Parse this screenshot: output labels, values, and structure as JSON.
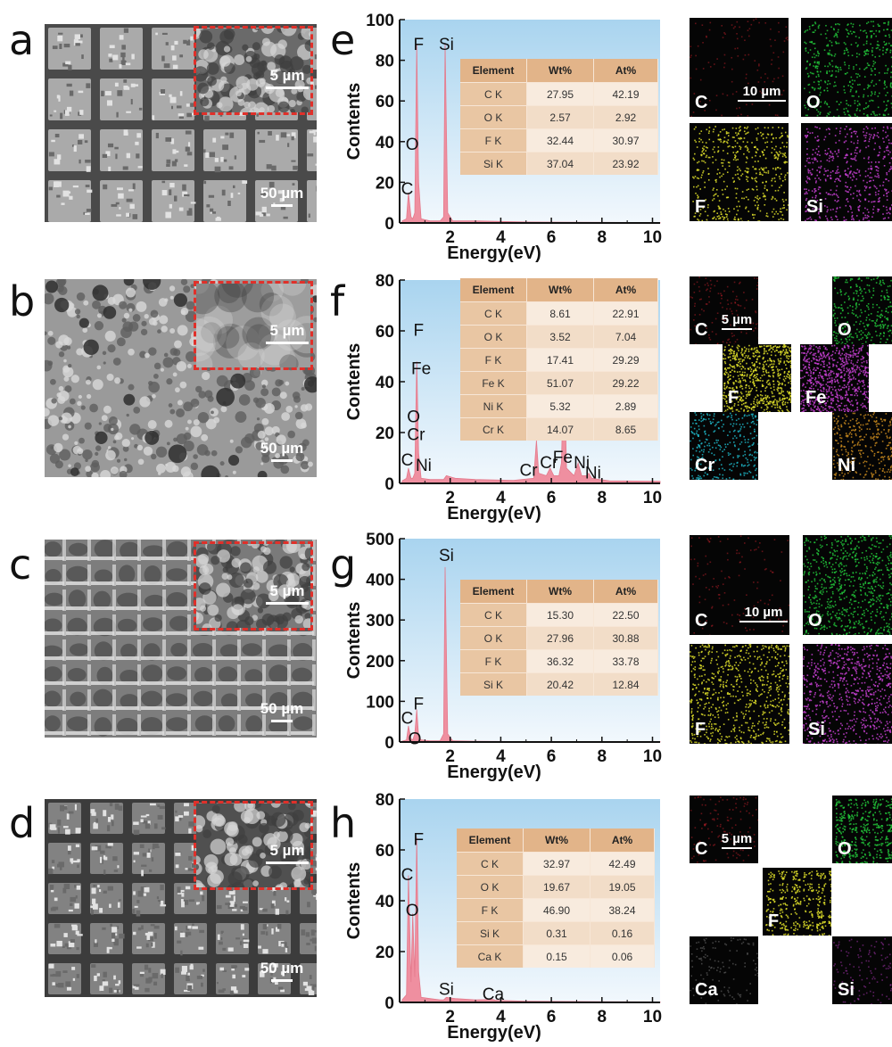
{
  "panels": [
    {
      "letter": "a",
      "inset_scale": "5 µm",
      "main_scale": "50 µm",
      "style": "grid"
    },
    {
      "letter": "b",
      "inset_scale": "5 µm",
      "main_scale": "50 µm",
      "style": "porous"
    },
    {
      "letter": "c",
      "inset_scale": "5 µm",
      "main_scale": "50 µm",
      "style": "ridged"
    },
    {
      "letter": "d",
      "inset_scale": "5 µm",
      "main_scale": "50 µm",
      "style": "grid-dark"
    }
  ],
  "charts": [
    {
      "letter": "e",
      "table_header": [
        "Element",
        "Wt%",
        "At%"
      ],
      "table_rows": [
        [
          "C K",
          "27.95",
          "42.19"
        ],
        [
          "O K",
          "2.57",
          "2.92"
        ],
        [
          "F K",
          "32.44",
          "30.97"
        ],
        [
          "Si K",
          "37.04",
          "23.92"
        ]
      ]
    },
    {
      "letter": "f",
      "table_header": [
        "Element",
        "Wt%",
        "At%"
      ],
      "table_rows": [
        [
          "C K",
          "8.61",
          "22.91"
        ],
        [
          "O K",
          "3.52",
          "7.04"
        ],
        [
          "F K",
          "17.41",
          "29.29"
        ],
        [
          "Fe K",
          "51.07",
          "29.22"
        ],
        [
          "Ni K",
          "5.32",
          "2.89"
        ],
        [
          "Cr K",
          "14.07",
          "8.65"
        ]
      ]
    },
    {
      "letter": "g",
      "table_header": [
        "Element",
        "Wt%",
        "At%"
      ],
      "table_rows": [
        [
          "C K",
          "15.30",
          "22.50"
        ],
        [
          "O K",
          "27.96",
          "30.88"
        ],
        [
          "F K",
          "36.32",
          "33.78"
        ],
        [
          "Si K",
          "20.42",
          "12.84"
        ]
      ]
    },
    {
      "letter": "h",
      "table_header": [
        "Element",
        "Wt%",
        "At%"
      ],
      "table_rows": [
        [
          "C K",
          "32.97",
          "42.49"
        ],
        [
          "O K",
          "19.67",
          "19.05"
        ],
        [
          "F K",
          "46.90",
          "38.24"
        ],
        [
          "Si K",
          "0.31",
          "0.16"
        ],
        [
          "Ca K",
          "0.15",
          "0.06"
        ]
      ]
    }
  ],
  "chart_data": [
    {
      "type": "line",
      "xlabel": "Energy(eV)",
      "ylabel": "Contents",
      "xlim": [
        0,
        10.3
      ],
      "ylim": [
        0,
        100
      ],
      "xticks": [
        2,
        4,
        6,
        8,
        10
      ],
      "yticks": [
        0,
        20,
        40,
        60,
        80,
        100
      ],
      "series": [
        {
          "x": [
            0.1,
            0.27,
            0.35,
            0.45,
            0.52,
            0.6,
            0.677,
            0.75,
            0.85,
            1.2,
            1.6,
            1.74,
            1.8,
            1.9,
            2.1,
            3,
            5,
            8,
            10.3
          ],
          "values": [
            1,
            2,
            15,
            3,
            2,
            5,
            88,
            20,
            2,
            1,
            1,
            3,
            88,
            5,
            1,
            1,
            0.5,
            0.3,
            0.2
          ]
        }
      ],
      "peak_labels": [
        {
          "text": "C",
          "x": 0.3,
          "y": 14
        },
        {
          "text": "O",
          "x": 0.5,
          "y": 36
        },
        {
          "text": "F",
          "x": 0.75,
          "y": 85
        },
        {
          "text": "Si",
          "x": 1.85,
          "y": 85
        }
      ]
    },
    {
      "type": "line",
      "xlabel": "Energy(eV)",
      "ylabel": "Contents",
      "xlim": [
        0,
        10.3
      ],
      "ylim": [
        0,
        80
      ],
      "xticks": [
        2,
        4,
        6,
        8,
        10
      ],
      "yticks": [
        0,
        20,
        40,
        60,
        80
      ],
      "series": [
        {
          "x": [
            0.1,
            0.27,
            0.35,
            0.45,
            0.52,
            0.6,
            0.677,
            0.75,
            0.85,
            1.2,
            1.5,
            1.74,
            1.85,
            2.2,
            3,
            4.5,
            5.3,
            5.41,
            5.5,
            5.8,
            5.95,
            6.1,
            6.3,
            6.4,
            6.5,
            6.6,
            6.9,
            7.06,
            7.2,
            7.4,
            7.48,
            7.6,
            7.9,
            8.3,
            10.3
          ],
          "values": [
            1,
            2,
            6,
            2,
            2,
            4,
            48,
            12,
            2,
            1.5,
            1.5,
            1.5,
            3,
            2,
            1.5,
            1.2,
            2,
            17,
            4,
            3,
            6,
            3,
            3,
            8,
            50,
            6,
            3,
            8,
            3,
            3,
            4,
            2,
            1.5,
            1,
            0.8
          ]
        }
      ],
      "peak_labels": [
        {
          "text": "C",
          "x": 0.3,
          "y": 7
        },
        {
          "text": "Ni",
          "x": 0.95,
          "y": 5
        },
        {
          "text": "Cr",
          "x": 0.65,
          "y": 17
        },
        {
          "text": "O",
          "x": 0.55,
          "y": 24
        },
        {
          "text": "Fe",
          "x": 0.85,
          "y": 43
        },
        {
          "text": "F",
          "x": 0.75,
          "y": 58
        },
        {
          "text": "Cr",
          "x": 5.1,
          "y": 3
        },
        {
          "text": "Cr",
          "x": 5.9,
          "y": 6
        },
        {
          "text": "Fe",
          "x": 6.45,
          "y": 8
        },
        {
          "text": "Ni",
          "x": 7.2,
          "y": 6
        },
        {
          "text": "Ni",
          "x": 7.65,
          "y": 2
        }
      ]
    },
    {
      "type": "line",
      "xlabel": "Energy(eV)",
      "ylabel": "Contents",
      "xlim": [
        0,
        10.3
      ],
      "ylim": [
        0,
        500
      ],
      "xticks": [
        2,
        4,
        6,
        8,
        10
      ],
      "yticks": [
        0,
        100,
        200,
        300,
        400,
        500
      ],
      "series": [
        {
          "x": [
            0.1,
            0.27,
            0.35,
            0.45,
            0.52,
            0.6,
            0.677,
            0.75,
            0.85,
            1.2,
            1.6,
            1.74,
            1.8,
            1.9,
            2.1,
            3,
            5,
            8,
            10.3
          ],
          "values": [
            2,
            5,
            40,
            8,
            5,
            20,
            80,
            15,
            5,
            3,
            3,
            20,
            430,
            20,
            3,
            2,
            1,
            1,
            1
          ]
        }
      ],
      "peak_labels": [
        {
          "text": "C",
          "x": 0.3,
          "y": 45
        },
        {
          "text": "O",
          "x": 0.6,
          "y": -5
        },
        {
          "text": "F",
          "x": 0.75,
          "y": 80
        },
        {
          "text": "Si",
          "x": 1.85,
          "y": 445
        }
      ]
    },
    {
      "type": "line",
      "xlabel": "Energy(eV)",
      "ylabel": "Contents",
      "xlim": [
        0,
        10.3
      ],
      "ylim": [
        0,
        80
      ],
      "xticks": [
        2,
        4,
        6,
        8,
        10
      ],
      "yticks": [
        0,
        20,
        40,
        60,
        80
      ],
      "series": [
        {
          "x": [
            0.1,
            0.27,
            0.35,
            0.45,
            0.52,
            0.6,
            0.677,
            0.75,
            0.85,
            1.2,
            1.6,
            1.74,
            1.85,
            2.2,
            3,
            3.69,
            3.8,
            5,
            8,
            10.3
          ],
          "values": [
            1,
            3,
            50,
            8,
            35,
            10,
            65,
            12,
            2,
            1.5,
            1,
            1,
            2,
            1.5,
            1,
            1.2,
            0.8,
            0.5,
            0.3,
            0.2
          ]
        }
      ],
      "peak_labels": [
        {
          "text": "C",
          "x": 0.3,
          "y": 48
        },
        {
          "text": "O",
          "x": 0.5,
          "y": 34
        },
        {
          "text": "F",
          "x": 0.75,
          "y": 62
        },
        {
          "text": "Si",
          "x": 1.85,
          "y": 3
        },
        {
          "text": "Ca",
          "x": 3.7,
          "y": 1
        }
      ]
    }
  ],
  "maps": [
    {
      "group": "e",
      "cells": [
        {
          "label": "C",
          "color": "#d4242f",
          "scale": "10 µm"
        },
        {
          "label": "O",
          "color": "#22c43a",
          "scale": ""
        },
        {
          "label": "F",
          "color": "#e1e12a",
          "scale": ""
        },
        {
          "label": "Si",
          "color": "#c53fd1",
          "scale": ""
        }
      ]
    },
    {
      "group": "f",
      "cells": [
        {
          "label": "C",
          "color": "#d4242f",
          "scale": "5 µm"
        },
        {
          "label": "O",
          "color": "#22c43a",
          "scale": ""
        },
        {
          "label": "F",
          "color": "#e1e12a",
          "scale": ""
        },
        {
          "label": "Fe",
          "color": "#c53fd1",
          "scale": ""
        },
        {
          "label": "Cr",
          "color": "#1fb5c5",
          "scale": ""
        },
        {
          "label": "Ni",
          "color": "#c88a1e",
          "scale": ""
        }
      ]
    },
    {
      "group": "g",
      "cells": [
        {
          "label": "C",
          "color": "#d4242f",
          "scale": "10 µm"
        },
        {
          "label": "O",
          "color": "#22c43a",
          "scale": ""
        },
        {
          "label": "F",
          "color": "#e1e12a",
          "scale": ""
        },
        {
          "label": "Si",
          "color": "#c53fd1",
          "scale": ""
        }
      ]
    },
    {
      "group": "h",
      "cells": [
        {
          "label": "C",
          "color": "#d4242f",
          "scale": "5 µm"
        },
        {
          "label": "O",
          "color": "#22c43a",
          "scale": ""
        },
        {
          "label": "F",
          "color": "#e1e12a",
          "scale": ""
        },
        {
          "label": "Ca",
          "color": "#8a8a8a",
          "scale": ""
        },
        {
          "label": "Si",
          "color": "#c53fd1",
          "scale": ""
        }
      ]
    }
  ],
  "colors": {
    "peak": "#ef8fa0",
    "plot_bg_top": "#a9d4ef",
    "plot_bg_bottom": "#f2f8fd",
    "inset_border": "#e0302a"
  }
}
